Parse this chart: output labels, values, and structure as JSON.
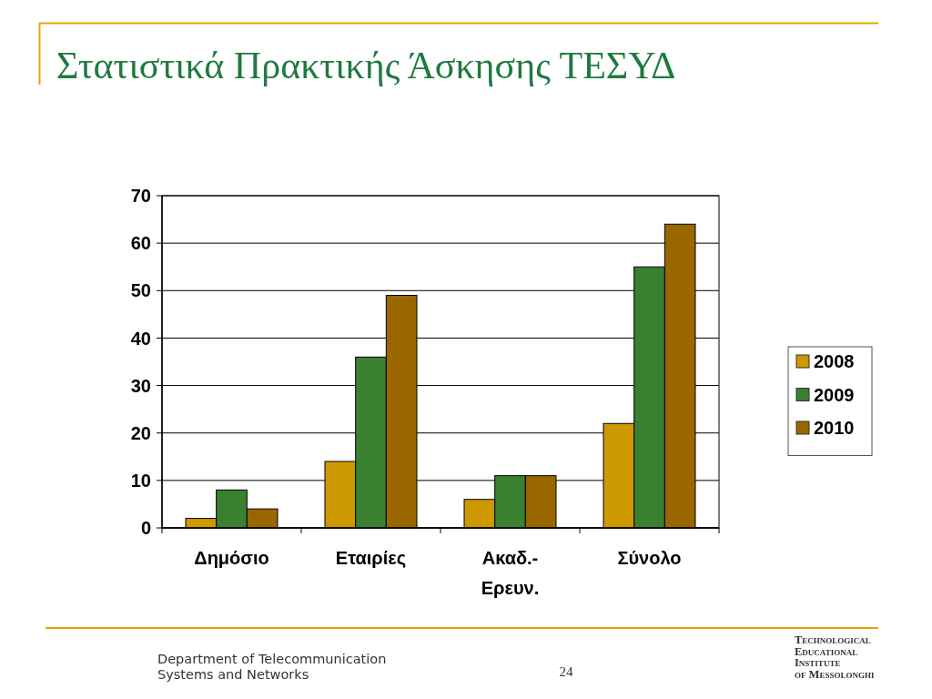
{
  "chart_data": {
    "type": "bar",
    "title": "Στατιστικά Πρακτικής Άσκησης ΤΕΣΥΔ",
    "categories": [
      "Δημόσιο",
      "Εταιρίες",
      "Ακαδ.-Ερευν.",
      "Σύνολο"
    ],
    "series": [
      {
        "name": "2008",
        "color": "#cc9900",
        "values": [
          2,
          14,
          6,
          22
        ]
      },
      {
        "name": "2009",
        "color": "#3a8031",
        "values": [
          8,
          36,
          11,
          55
        ]
      },
      {
        "name": "2010",
        "color": "#996600",
        "values": [
          4,
          49,
          11,
          64
        ]
      }
    ],
    "ylim": [
      0,
      70
    ],
    "yticks": [
      0,
      10,
      20,
      30,
      40,
      50,
      60,
      70
    ],
    "grid": "y",
    "legend": "right",
    "annotations": [
      "Department of Telecommunication Systems and Networks",
      "24",
      "Technological Educational Institute of Messolonghi"
    ]
  }
}
